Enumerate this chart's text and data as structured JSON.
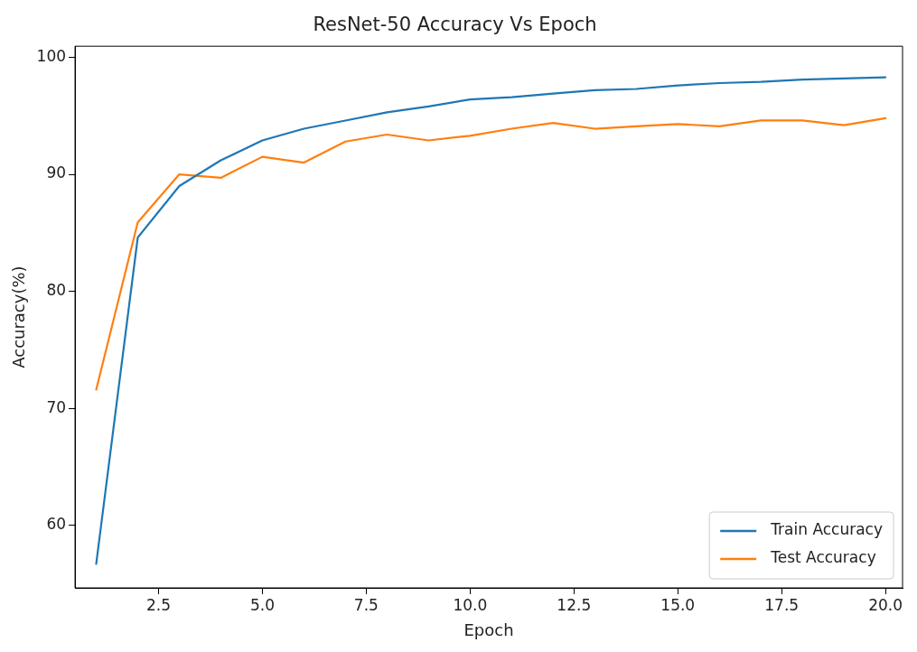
{
  "chart_data": {
    "type": "line",
    "title": "ResNet-50 Accuracy Vs Epoch",
    "xlabel": "Epoch",
    "ylabel": "Accuracy(%)",
    "x": [
      1,
      2,
      3,
      4,
      5,
      6,
      7,
      8,
      9,
      10,
      11,
      12,
      13,
      14,
      15,
      16,
      17,
      18,
      19,
      20
    ],
    "series": [
      {
        "name": "Train Accuracy",
        "color": "#1f77b4",
        "values": [
          56.7,
          84.6,
          89.0,
          91.2,
          92.9,
          93.9,
          94.6,
          95.3,
          95.8,
          96.4,
          96.6,
          96.9,
          97.2,
          97.3,
          97.6,
          97.8,
          97.9,
          98.1,
          98.2,
          98.3
        ]
      },
      {
        "name": "Test Accuracy",
        "color": "#ff7f0e",
        "values": [
          71.6,
          85.9,
          90.0,
          89.7,
          91.5,
          91.0,
          92.8,
          93.4,
          92.9,
          93.3,
          93.9,
          94.4,
          93.9,
          94.1,
          94.3,
          94.1,
          94.6,
          94.6,
          94.2,
          94.8
        ]
      }
    ],
    "xlim": [
      0.49,
      20.41
    ],
    "ylim": [
      54.65,
      100.95
    ],
    "xticks": [
      {
        "value": 2.5,
        "label": "2.5"
      },
      {
        "value": 5,
        "label": "5.0"
      },
      {
        "value": 7.5,
        "label": "7.5"
      },
      {
        "value": 10,
        "label": "10.0"
      },
      {
        "value": 12.5,
        "label": "12.5"
      },
      {
        "value": 15,
        "label": "15.0"
      },
      {
        "value": 17.5,
        "label": "17.5"
      },
      {
        "value": 20,
        "label": "20.0"
      }
    ],
    "yticks": [
      60,
      70,
      80,
      90,
      100
    ],
    "grid": false,
    "legend": "bottom right",
    "marker": "none",
    "line_style": "solid"
  }
}
